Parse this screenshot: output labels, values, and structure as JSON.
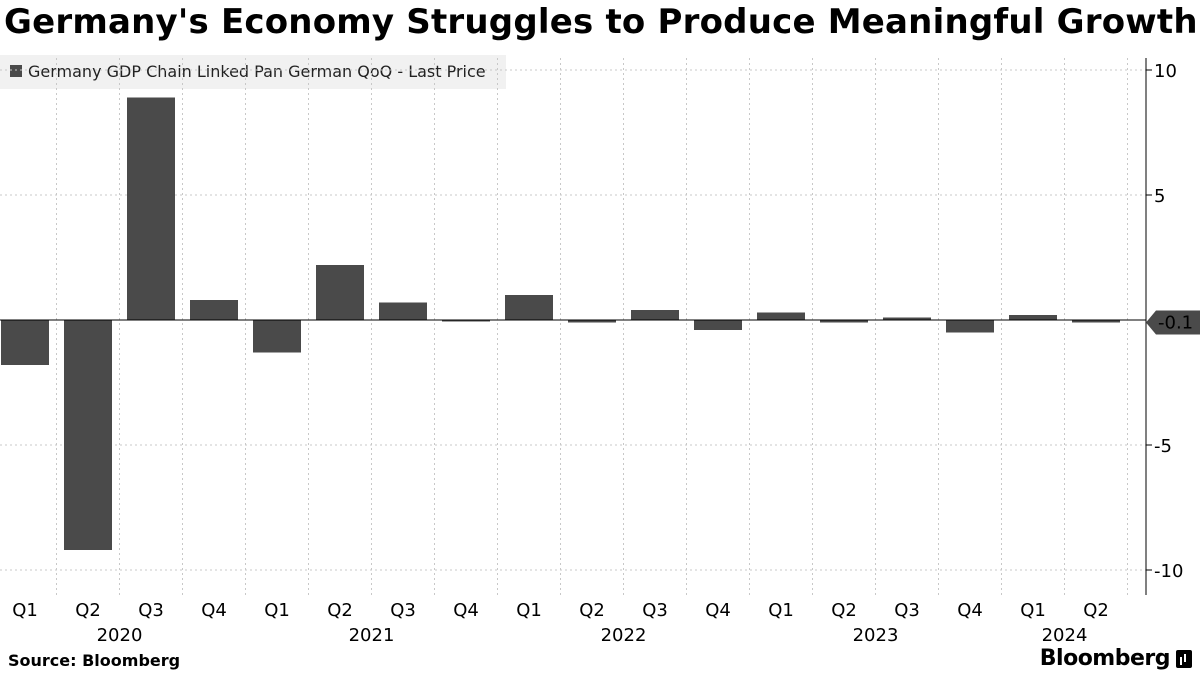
{
  "chart_data": {
    "type": "bar",
    "title": "Germany's Economy Struggles to Produce Meaningful Growth",
    "legend": "Germany GDP Chain Linked Pan German QoQ - Last Price",
    "legend_position": "top-left",
    "categories": [
      "Q1",
      "Q2",
      "Q3",
      "Q4",
      "Q1",
      "Q2",
      "Q3",
      "Q4",
      "Q1",
      "Q2",
      "Q3",
      "Q4",
      "Q1",
      "Q2",
      "Q3",
      "Q4",
      "Q1",
      "Q2"
    ],
    "years": [
      {
        "label": "2020",
        "start": 0,
        "end": 3
      },
      {
        "label": "2021",
        "start": 4,
        "end": 7
      },
      {
        "label": "2022",
        "start": 8,
        "end": 11
      },
      {
        "label": "2023",
        "start": 12,
        "end": 15
      },
      {
        "label": "2024",
        "start": 16,
        "end": 17
      }
    ],
    "values": [
      -1.8,
      -9.2,
      8.9,
      0.8,
      -1.3,
      2.2,
      0.7,
      -0.05,
      1.0,
      -0.1,
      0.4,
      -0.4,
      0.3,
      -0.1,
      0.1,
      -0.5,
      0.2,
      -0.1
    ],
    "ylim": [
      -11,
      10.5
    ],
    "yticks": [
      10,
      5,
      -5,
      -10
    ],
    "ytick_labels": [
      "10",
      "5",
      "-5",
      "-10"
    ],
    "last_value_label": "-0.1",
    "grid": true,
    "xlabel": "",
    "ylabel": ""
  },
  "footer": {
    "source": "Source: Bloomberg",
    "brand": "Bloomberg"
  }
}
